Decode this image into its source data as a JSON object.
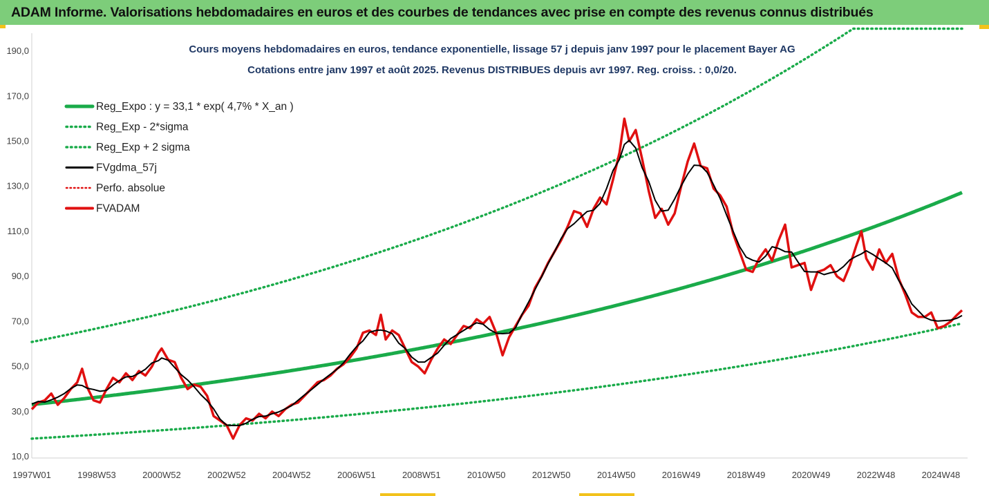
{
  "header": {
    "title": "ADAM Informe. Valorisations hebdomadaires en euros et des courbes de tendances avec prise en compte des revenus connus distribués"
  },
  "colors": {
    "banner": "#7dcd7a",
    "trend": "#1aab4a",
    "band": "#1aab4a",
    "gdma": "#000000",
    "fvadam": "#e01010",
    "perfo": "#e01010",
    "title": "#1f3864"
  },
  "chart_data": {
    "type": "line",
    "title": "Cours moyens hebdomadaires en euros, tendance exponentielle, lissage 57 j depuis janv 1997 pour le placement Bayer AG",
    "subtitle": "Cotations entre janv 1997 et août 2025. Revenus DISTRIBUES depuis avr 1997. Reg. croiss. : 0,0/20.",
    "xlabel": "",
    "ylabel": "",
    "x_range": [
      1997.0,
      2025.65
    ],
    "ylim": [
      10,
      198
    ],
    "grid": false,
    "legend_position": "top-left",
    "y_ticks": [
      "10,0",
      "30,0",
      "50,0",
      "70,0",
      "90,0",
      "110,0",
      "130,0",
      "150,0",
      "170,0",
      "190,0"
    ],
    "y_tick_values": [
      10,
      30,
      50,
      70,
      90,
      110,
      130,
      150,
      170,
      190
    ],
    "x_ticks": [
      {
        "label": "1997W01",
        "x": 1997.0
      },
      {
        "label": "1998W53",
        "x": 1999.0
      },
      {
        "label": "2000W52",
        "x": 2001.0
      },
      {
        "label": "2002W52",
        "x": 2003.0
      },
      {
        "label": "2004W52",
        "x": 2005.0
      },
      {
        "label": "2006W51",
        "x": 2007.0
      },
      {
        "label": "2008W51",
        "x": 2009.0
      },
      {
        "label": "2010W50",
        "x": 2011.0
      },
      {
        "label": "2012W50",
        "x": 2013.0
      },
      {
        "label": "2014W50",
        "x": 2015.0
      },
      {
        "label": "2016W49",
        "x": 2017.0
      },
      {
        "label": "2018W49",
        "x": 2019.0
      },
      {
        "label": "2020W49",
        "x": 2021.0
      },
      {
        "label": "2022W48",
        "x": 2023.0
      },
      {
        "label": "2024W48",
        "x": 2025.0
      }
    ],
    "regression": {
      "a": 33.1,
      "rate": 0.047,
      "band_factor": 1.84,
      "band_cap": 200
    },
    "legend": [
      {
        "key": "reg",
        "label": "Reg_Expo : y = 33,1 * exp( 4,7% *  X_an )"
      },
      {
        "key": "low",
        "label": "Reg_Exp - 2*sigma"
      },
      {
        "key": "high",
        "label": "Reg_Exp + 2 sigma"
      },
      {
        "key": "gdma",
        "label": "FVgdma_57j"
      },
      {
        "key": "perfo",
        "label": "Perfo. absolue"
      },
      {
        "key": "fvadam",
        "label": "FVADAM"
      }
    ],
    "series": [
      {
        "name": "FVADAM",
        "points": [
          [
            1997.0,
            31
          ],
          [
            1997.2,
            34
          ],
          [
            1997.4,
            35
          ],
          [
            1997.6,
            38
          ],
          [
            1997.8,
            33
          ],
          [
            1998.0,
            36
          ],
          [
            1998.2,
            40
          ],
          [
            1998.4,
            43
          ],
          [
            1998.55,
            49
          ],
          [
            1998.7,
            41
          ],
          [
            1998.9,
            35
          ],
          [
            1999.1,
            34
          ],
          [
            1999.3,
            40
          ],
          [
            1999.5,
            45
          ],
          [
            1999.7,
            43
          ],
          [
            1999.9,
            47
          ],
          [
            2000.1,
            44
          ],
          [
            2000.3,
            48
          ],
          [
            2000.5,
            46
          ],
          [
            2000.7,
            50
          ],
          [
            2000.9,
            56
          ],
          [
            2001.0,
            58
          ],
          [
            2001.2,
            53
          ],
          [
            2001.4,
            52
          ],
          [
            2001.6,
            45
          ],
          [
            2001.8,
            40
          ],
          [
            2002.0,
            42
          ],
          [
            2002.2,
            41
          ],
          [
            2002.4,
            37
          ],
          [
            2002.6,
            28
          ],
          [
            2002.8,
            26
          ],
          [
            2003.0,
            24
          ],
          [
            2003.2,
            18
          ],
          [
            2003.4,
            24
          ],
          [
            2003.6,
            27
          ],
          [
            2003.8,
            26
          ],
          [
            2004.0,
            29
          ],
          [
            2004.2,
            27
          ],
          [
            2004.4,
            30
          ],
          [
            2004.6,
            28
          ],
          [
            2004.8,
            31
          ],
          [
            2005.0,
            33
          ],
          [
            2005.2,
            34
          ],
          [
            2005.4,
            37
          ],
          [
            2005.6,
            40
          ],
          [
            2005.8,
            43
          ],
          [
            2006.0,
            44
          ],
          [
            2006.2,
            46
          ],
          [
            2006.4,
            49
          ],
          [
            2006.6,
            51
          ],
          [
            2006.8,
            54
          ],
          [
            2007.0,
            58
          ],
          [
            2007.2,
            65
          ],
          [
            2007.4,
            66
          ],
          [
            2007.6,
            64
          ],
          [
            2007.75,
            73
          ],
          [
            2007.9,
            62
          ],
          [
            2008.1,
            66
          ],
          [
            2008.3,
            64
          ],
          [
            2008.5,
            58
          ],
          [
            2008.7,
            52
          ],
          [
            2008.9,
            50
          ],
          [
            2009.1,
            47
          ],
          [
            2009.3,
            53
          ],
          [
            2009.5,
            58
          ],
          [
            2009.7,
            62
          ],
          [
            2009.9,
            60
          ],
          [
            2010.1,
            64
          ],
          [
            2010.3,
            68
          ],
          [
            2010.5,
            67
          ],
          [
            2010.7,
            71
          ],
          [
            2010.9,
            69
          ],
          [
            2011.1,
            72
          ],
          [
            2011.3,
            65
          ],
          [
            2011.5,
            55
          ],
          [
            2011.7,
            63
          ],
          [
            2011.9,
            68
          ],
          [
            2012.1,
            73
          ],
          [
            2012.3,
            77
          ],
          [
            2012.5,
            85
          ],
          [
            2012.7,
            90
          ],
          [
            2012.9,
            96
          ],
          [
            2013.1,
            101
          ],
          [
            2013.3,
            106
          ],
          [
            2013.5,
            112
          ],
          [
            2013.7,
            119
          ],
          [
            2013.9,
            118
          ],
          [
            2014.1,
            112
          ],
          [
            2014.3,
            120
          ],
          [
            2014.5,
            125
          ],
          [
            2014.7,
            122
          ],
          [
            2014.9,
            133
          ],
          [
            2015.1,
            145
          ],
          [
            2015.25,
            160
          ],
          [
            2015.4,
            150
          ],
          [
            2015.6,
            155
          ],
          [
            2015.8,
            142
          ],
          [
            2016.0,
            128
          ],
          [
            2016.2,
            116
          ],
          [
            2016.4,
            120
          ],
          [
            2016.6,
            113
          ],
          [
            2016.8,
            118
          ],
          [
            2017.0,
            130
          ],
          [
            2017.2,
            141
          ],
          [
            2017.4,
            149
          ],
          [
            2017.6,
            139
          ],
          [
            2017.8,
            138
          ],
          [
            2018.0,
            129
          ],
          [
            2018.2,
            126
          ],
          [
            2018.4,
            121
          ],
          [
            2018.6,
            109
          ],
          [
            2018.8,
            101
          ],
          [
            2019.0,
            93
          ],
          [
            2019.2,
            92
          ],
          [
            2019.4,
            98
          ],
          [
            2019.6,
            102
          ],
          [
            2019.8,
            97
          ],
          [
            2020.0,
            106
          ],
          [
            2020.2,
            113
          ],
          [
            2020.4,
            94
          ],
          [
            2020.6,
            95
          ],
          [
            2020.8,
            96
          ],
          [
            2021.0,
            84
          ],
          [
            2021.2,
            92
          ],
          [
            2021.4,
            93
          ],
          [
            2021.6,
            95
          ],
          [
            2021.8,
            90
          ],
          [
            2022.0,
            88
          ],
          [
            2022.2,
            95
          ],
          [
            2022.4,
            104
          ],
          [
            2022.55,
            110
          ],
          [
            2022.7,
            98
          ],
          [
            2022.9,
            93
          ],
          [
            2023.1,
            102
          ],
          [
            2023.3,
            96
          ],
          [
            2023.5,
            100
          ],
          [
            2023.7,
            89
          ],
          [
            2023.9,
            82
          ],
          [
            2024.1,
            74
          ],
          [
            2024.3,
            72
          ],
          [
            2024.5,
            72
          ],
          [
            2024.7,
            74
          ],
          [
            2024.9,
            67
          ],
          [
            2025.1,
            68
          ],
          [
            2025.3,
            70
          ],
          [
            2025.5,
            73
          ],
          [
            2025.65,
            75
          ]
        ]
      }
    ]
  }
}
